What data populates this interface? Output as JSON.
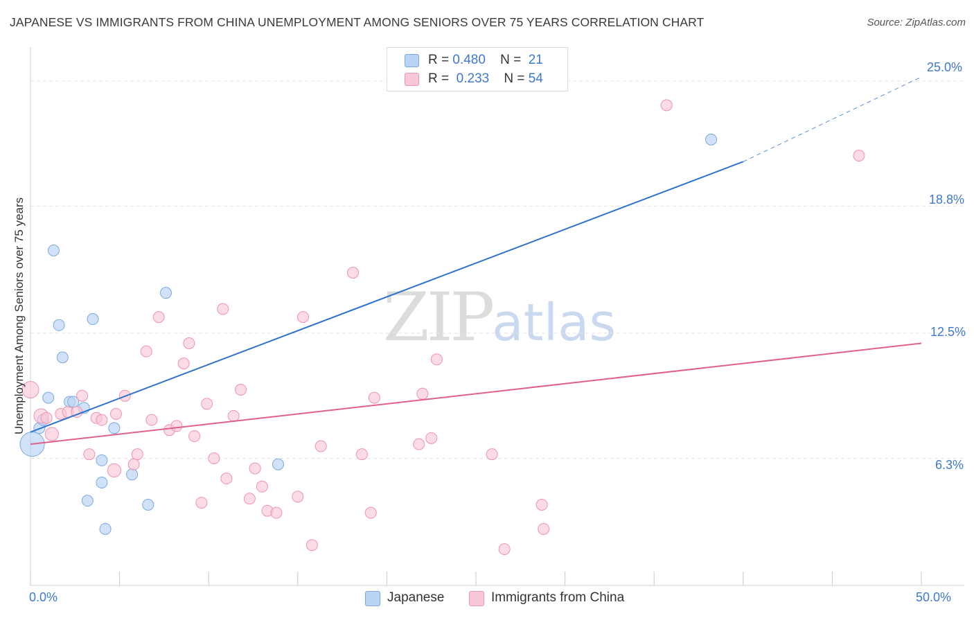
{
  "title": "JAPANESE VS IMMIGRANTS FROM CHINA UNEMPLOYMENT AMONG SENIORS OVER 75 YEARS CORRELATION CHART",
  "source": "Source: ZipAtlas.com",
  "watermark": {
    "zip": "ZIP",
    "atlas": "atlas"
  },
  "legend": {
    "rows": [
      {
        "r_label": "R =",
        "r_value": "0.480",
        "n_label": "N =",
        "n_value": "21"
      },
      {
        "r_label": "R =",
        "r_value": "0.233",
        "n_label": "N =",
        "n_value": "54"
      }
    ]
  },
  "bottom_legend": {
    "japanese": "Japanese",
    "china": "Immigrants from China"
  },
  "axis": {
    "ylabel": "Unemployment Among Seniors over 75 years",
    "x_min_label": "0.0%",
    "x_max_label": "50.0%",
    "y_ticks": [
      "25.0%",
      "18.8%",
      "12.5%",
      "6.3%"
    ]
  },
  "colors": {
    "japanese_fill": "#b8d3f4",
    "japanese_stroke": "#7aa8e0",
    "japanese_line": "#2f72cc",
    "china_fill": "#f9c8d6",
    "china_stroke": "#ee93b0",
    "china_line": "#e0608c",
    "tick_label": "#3d78d0",
    "grid": "#e3e3e3"
  },
  "chart_data": {
    "type": "scatter",
    "title": "JAPANESE VS IMMIGRANTS FROM CHINA UNEMPLOYMENT AMONG SENIORS OVER 75 YEARS CORRELATION CHART",
    "xlabel": "",
    "ylabel": "Unemployment Among Seniors over 75 years",
    "xlim": [
      0,
      50
    ],
    "ylim": [
      0,
      26.3
    ],
    "x_ticks": [
      0,
      5,
      10,
      15,
      20,
      25,
      30,
      35,
      40,
      45,
      50
    ],
    "y_ticks": [
      6.3,
      12.5,
      18.8,
      25.0
    ],
    "grid": true,
    "series": [
      {
        "name": "Japanese",
        "r": 0.48,
        "n": 21,
        "trend": {
          "x0": 0,
          "y0": 7.6,
          "x1": 40,
          "y1": 21.0,
          "dashed_to_x": 50,
          "dashed_to_y": 25.2
        },
        "points": [
          {
            "x": 0.1,
            "y": 7.0,
            "s": 2.2
          },
          {
            "x": 0.5,
            "y": 7.8,
            "s": 1
          },
          {
            "x": 0.7,
            "y": 8.2,
            "s": 1
          },
          {
            "x": 1.0,
            "y": 9.3,
            "s": 1
          },
          {
            "x": 1.3,
            "y": 16.6,
            "s": 1
          },
          {
            "x": 1.6,
            "y": 12.9,
            "s": 1
          },
          {
            "x": 1.8,
            "y": 11.3,
            "s": 1
          },
          {
            "x": 2.2,
            "y": 9.1,
            "s": 1
          },
          {
            "x": 2.4,
            "y": 9.1,
            "s": 1
          },
          {
            "x": 3.0,
            "y": 8.8,
            "s": 1
          },
          {
            "x": 3.5,
            "y": 13.2,
            "s": 1
          },
          {
            "x": 4.0,
            "y": 5.1,
            "s": 1
          },
          {
            "x": 4.0,
            "y": 6.2,
            "s": 1
          },
          {
            "x": 3.2,
            "y": 4.2,
            "s": 1
          },
          {
            "x": 4.2,
            "y": 2.8,
            "s": 1
          },
          {
            "x": 4.7,
            "y": 7.8,
            "s": 1
          },
          {
            "x": 5.7,
            "y": 5.5,
            "s": 1
          },
          {
            "x": 6.6,
            "y": 4.0,
            "s": 1
          },
          {
            "x": 7.6,
            "y": 14.5,
            "s": 1
          },
          {
            "x": 13.9,
            "y": 6.0,
            "s": 1
          },
          {
            "x": 38.2,
            "y": 22.1,
            "s": 1
          }
        ]
      },
      {
        "name": "Immigrants from China",
        "r": 0.233,
        "n": 54,
        "trend": {
          "x0": 0,
          "y0": 7.0,
          "x1": 50,
          "y1": 12.0
        },
        "points": [
          {
            "x": 0.0,
            "y": 9.7,
            "s": 1.5
          },
          {
            "x": 0.6,
            "y": 8.4,
            "s": 1.3
          },
          {
            "x": 1.2,
            "y": 7.5,
            "s": 1.2
          },
          {
            "x": 1.7,
            "y": 8.5,
            "s": 1
          },
          {
            "x": 2.1,
            "y": 8.6,
            "s": 1
          },
          {
            "x": 2.6,
            "y": 8.6,
            "s": 1
          },
          {
            "x": 2.9,
            "y": 9.4,
            "s": 1
          },
          {
            "x": 3.3,
            "y": 6.5,
            "s": 1
          },
          {
            "x": 3.7,
            "y": 8.3,
            "s": 1
          },
          {
            "x": 4.0,
            "y": 8.2,
            "s": 1
          },
          {
            "x": 4.7,
            "y": 5.7,
            "s": 1.2
          },
          {
            "x": 4.8,
            "y": 8.5,
            "s": 1
          },
          {
            "x": 5.3,
            "y": 9.4,
            "s": 1
          },
          {
            "x": 5.8,
            "y": 6.0,
            "s": 1
          },
          {
            "x": 6.0,
            "y": 6.5,
            "s": 1
          },
          {
            "x": 6.5,
            "y": 11.6,
            "s": 1
          },
          {
            "x": 6.8,
            "y": 8.2,
            "s": 1
          },
          {
            "x": 7.2,
            "y": 13.3,
            "s": 1
          },
          {
            "x": 7.8,
            "y": 7.7,
            "s": 1
          },
          {
            "x": 8.2,
            "y": 7.9,
            "s": 1
          },
          {
            "x": 8.6,
            "y": 11.0,
            "s": 1
          },
          {
            "x": 8.9,
            "y": 12.0,
            "s": 1
          },
          {
            "x": 9.2,
            "y": 7.4,
            "s": 1
          },
          {
            "x": 9.6,
            "y": 4.1,
            "s": 1
          },
          {
            "x": 9.9,
            "y": 9.0,
            "s": 1
          },
          {
            "x": 10.3,
            "y": 6.3,
            "s": 1
          },
          {
            "x": 10.8,
            "y": 13.7,
            "s": 1
          },
          {
            "x": 11.0,
            "y": 5.3,
            "s": 1
          },
          {
            "x": 11.4,
            "y": 8.4,
            "s": 1
          },
          {
            "x": 11.8,
            "y": 9.7,
            "s": 1
          },
          {
            "x": 12.3,
            "y": 4.3,
            "s": 1
          },
          {
            "x": 12.6,
            "y": 5.8,
            "s": 1
          },
          {
            "x": 13.0,
            "y": 4.9,
            "s": 1
          },
          {
            "x": 13.3,
            "y": 3.7,
            "s": 1
          },
          {
            "x": 13.8,
            "y": 3.6,
            "s": 1
          },
          {
            "x": 15.0,
            "y": 4.4,
            "s": 1
          },
          {
            "x": 15.3,
            "y": 13.3,
            "s": 1
          },
          {
            "x": 15.8,
            "y": 2.0,
            "s": 1
          },
          {
            "x": 16.3,
            "y": 6.9,
            "s": 1
          },
          {
            "x": 18.1,
            "y": 15.5,
            "s": 1
          },
          {
            "x": 18.6,
            "y": 6.5,
            "s": 1
          },
          {
            "x": 19.1,
            "y": 3.6,
            "s": 1
          },
          {
            "x": 19.3,
            "y": 9.3,
            "s": 1
          },
          {
            "x": 21.8,
            "y": 7.0,
            "s": 1
          },
          {
            "x": 22.0,
            "y": 9.5,
            "s": 1
          },
          {
            "x": 22.5,
            "y": 7.3,
            "s": 1
          },
          {
            "x": 22.8,
            "y": 11.2,
            "s": 1
          },
          {
            "x": 25.9,
            "y": 6.5,
            "s": 1
          },
          {
            "x": 26.6,
            "y": 1.8,
            "s": 1
          },
          {
            "x": 28.7,
            "y": 4.0,
            "s": 1
          },
          {
            "x": 28.8,
            "y": 2.8,
            "s": 1
          },
          {
            "x": 35.7,
            "y": 23.8,
            "s": 1
          },
          {
            "x": 46.5,
            "y": 21.3,
            "s": 1
          },
          {
            "x": 0.9,
            "y": 8.3,
            "s": 1
          }
        ]
      }
    ]
  }
}
